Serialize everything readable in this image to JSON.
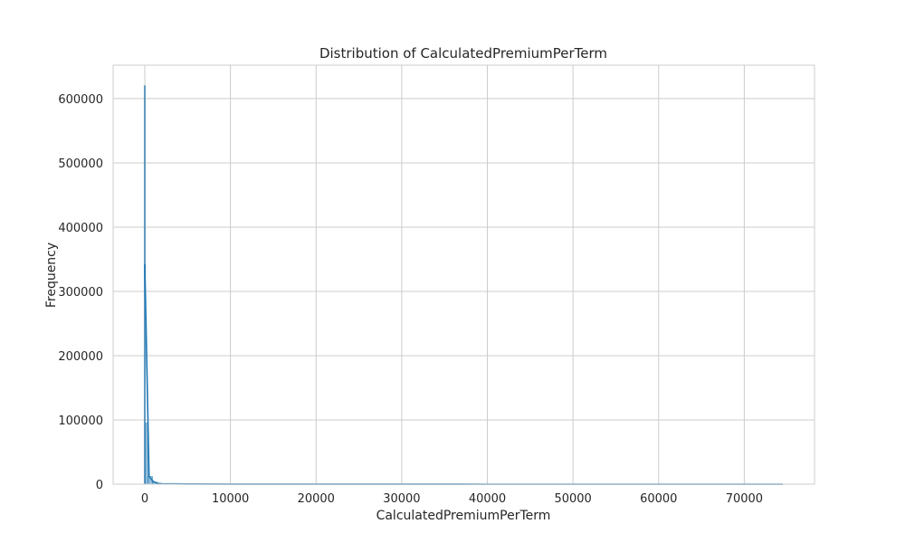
{
  "chart_data": {
    "type": "bar",
    "title": "Distribution of CalculatedPremiumPerTerm",
    "xlabel": "CalculatedPremiumPerTerm",
    "ylabel": "Frequency",
    "xlim": [
      -3700,
      78200
    ],
    "ylim": [
      0,
      652000
    ],
    "x_ticks": [
      0,
      10000,
      20000,
      30000,
      40000,
      50000,
      60000,
      70000
    ],
    "y_ticks": [
      0,
      100000,
      200000,
      300000,
      400000,
      500000,
      600000
    ],
    "grid": true,
    "legend": "none",
    "bars": [
      {
        "x0": -80,
        "x1": 70,
        "value": 620000
      },
      {
        "x0": 70,
        "x1": 370,
        "value": 95000
      },
      {
        "x0": 370,
        "x1": 900,
        "value": 12000
      },
      {
        "x0": 900,
        "x1": 1500,
        "value": 3000
      }
    ],
    "kde_line": {
      "x": [
        0,
        500,
        1000,
        1500,
        2000,
        5000,
        10000,
        20000,
        40000,
        60000,
        74500
      ],
      "y": [
        342000,
        12000,
        4000,
        1200,
        600,
        200,
        80,
        40,
        20,
        10,
        5
      ]
    },
    "colors": {
      "grid": "#cccccc",
      "frame": "#cccccc",
      "bar": "#1f77b4",
      "line": "#1f77b4",
      "text": "#262626"
    }
  }
}
